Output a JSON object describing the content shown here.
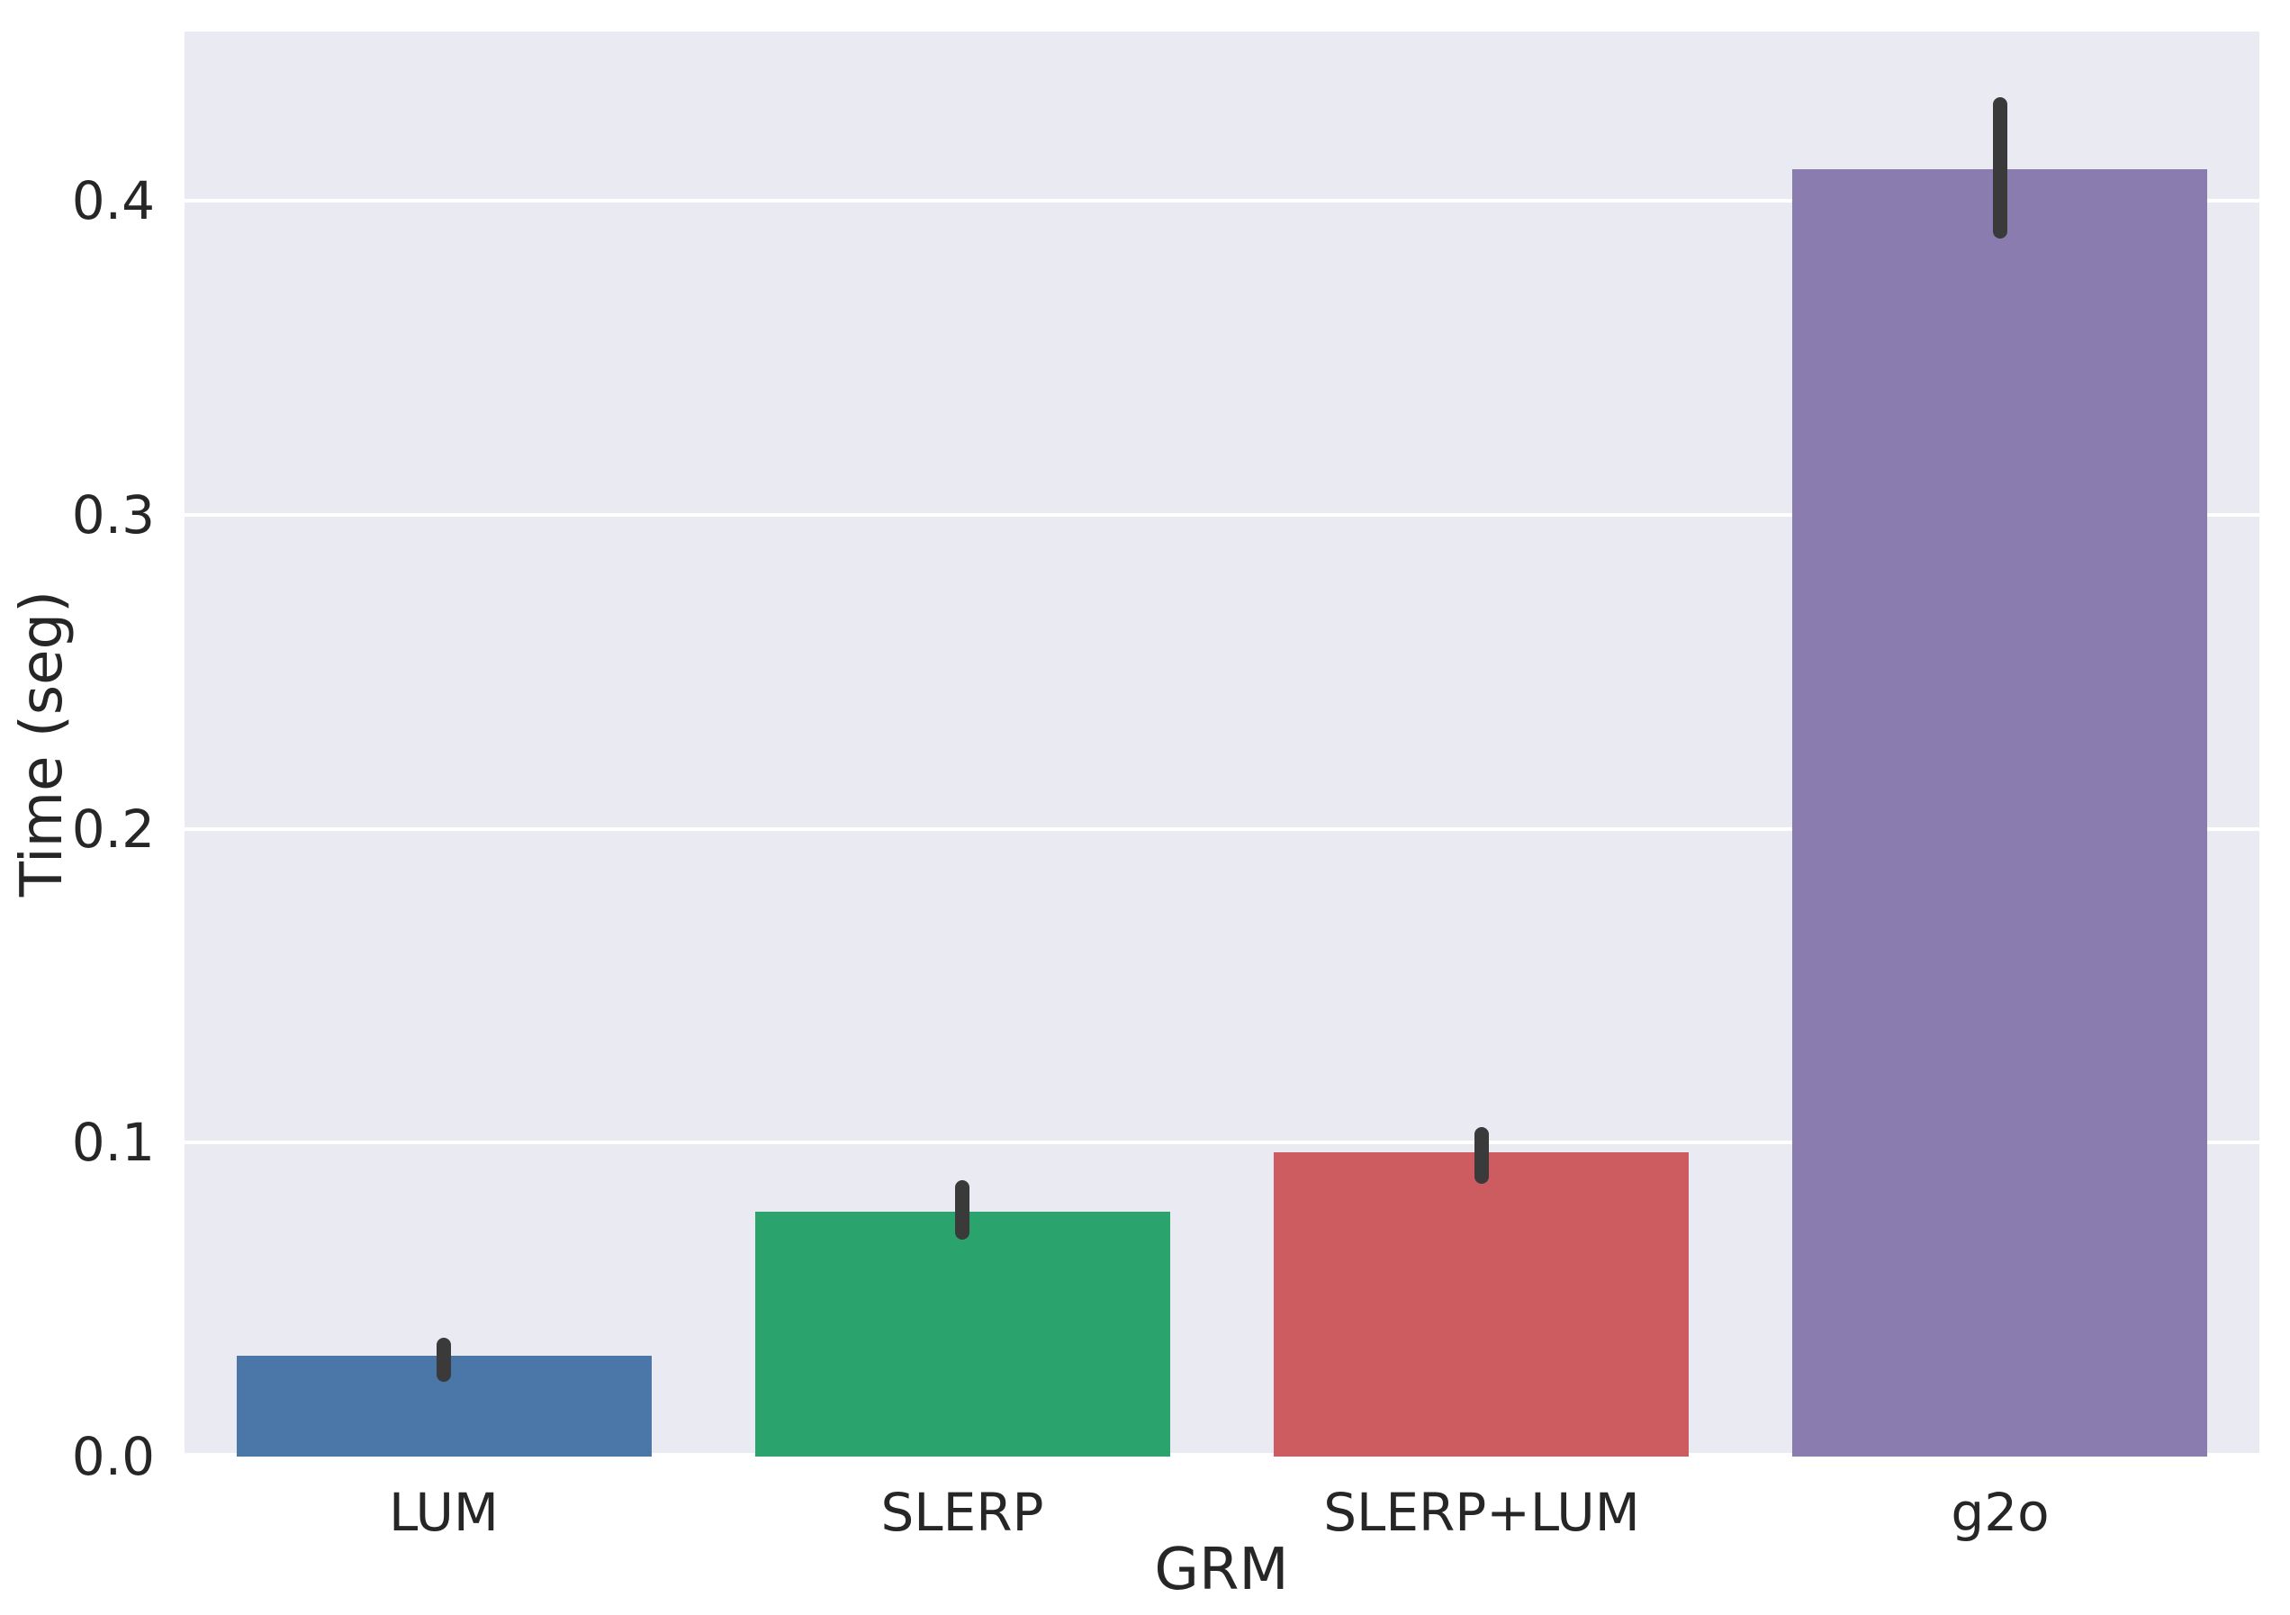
{
  "chart_data": {
    "type": "bar",
    "title": "",
    "xlabel": "GRM",
    "ylabel": "Time (seg)",
    "categories": [
      "LUM",
      "SLERP",
      "SLERP+LUM",
      "g2o"
    ],
    "values": [
      0.032,
      0.078,
      0.097,
      0.41
    ],
    "error_low": [
      0.024,
      0.069,
      0.087,
      0.388
    ],
    "error_high": [
      0.038,
      0.088,
      0.105,
      0.433
    ],
    "bar_colors": [
      "#4a76a8",
      "#2aa36d",
      "#cc5c60",
      "#8b7cb0"
    ],
    "ylim": [
      0,
      0.454
    ],
    "yticks": [
      0.0,
      0.1,
      0.2,
      0.3,
      0.4
    ],
    "ytick_labels": [
      "0.0",
      "0.1",
      "0.2",
      "0.3",
      "0.4"
    ],
    "grid": true,
    "legend_position": "none",
    "styles": {
      "figure_bg": "#ffffff",
      "plot_bg": "#eaeaf2",
      "grid_color": "#ffffff",
      "error_color": "#3a3a3a",
      "text_color": "#262626"
    }
  }
}
